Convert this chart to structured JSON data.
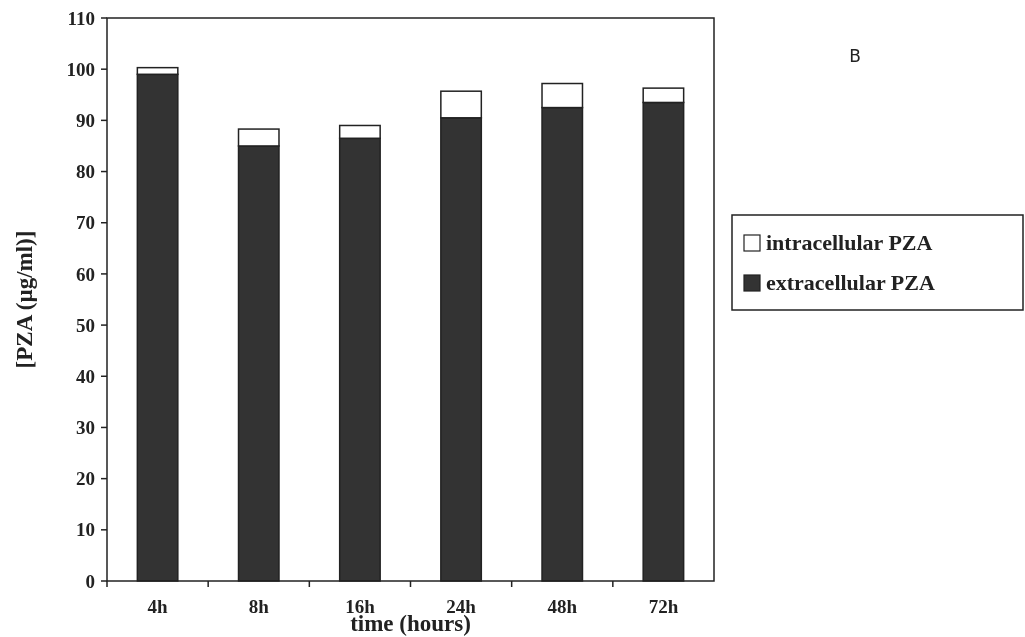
{
  "chart_data": {
    "type": "bar",
    "stacked": true,
    "xlabel": "time (hours)",
    "ylabel": "[PZA (µg/ml)]",
    "annotations": [
      "B"
    ],
    "categories": [
      "4h",
      "8h",
      "16h",
      "24h",
      "48h",
      "72h"
    ],
    "series": [
      {
        "name": "extracellular PZA",
        "color": "#333333",
        "values": [
          99,
          85,
          86.5,
          90.5,
          92.5,
          93.5
        ]
      },
      {
        "name": "intracellular PZA",
        "color": "#ffffff",
        "values": [
          1.3,
          3.3,
          2.5,
          5.2,
          4.7,
          2.8
        ]
      }
    ],
    "ylim": [
      0,
      110
    ],
    "yticks": [
      0,
      10,
      20,
      30,
      40,
      50,
      60,
      70,
      80,
      90,
      100,
      110
    ],
    "grid": false,
    "legend": "right"
  }
}
